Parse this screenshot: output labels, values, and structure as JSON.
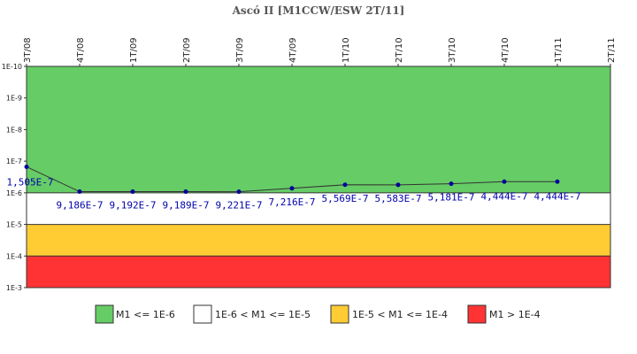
{
  "chart_data": {
    "type": "line",
    "title": "Ascó II [M1CCW/ESW 2T/11]",
    "xlabel": "",
    "ylabel": "",
    "categories": [
      "3T/08",
      "4T/08",
      "1T/09",
      "2T/09",
      "3T/09",
      "4T/09",
      "1T/10",
      "2T/10",
      "3T/10",
      "4T/10",
      "1T/11",
      "2T/11"
    ],
    "y_scale": "log",
    "y_tick_labels": [
      "1E-10",
      "1E-9",
      "1E-8",
      "1E-7",
      "1E-6",
      "1E-5",
      "1E-4",
      "1E-3"
    ],
    "ylim": [
      0.001,
      1e-10
    ],
    "y_axis_inverted": true,
    "series": [
      {
        "values": [
          1.505e-07,
          9.186e-07,
          9.192e-07,
          9.189e-07,
          9.221e-07,
          7.216e-07,
          5.569e-07,
          5.583e-07,
          5.181e-07,
          4.444e-07,
          4.444e-07,
          null
        ],
        "labels": [
          "1,505E-7",
          "9,186E-7",
          "9,192E-7",
          "9,189E-7",
          "9,221E-7",
          "7,216E-7",
          "5,569E-7",
          "5,583E-7",
          "5,181E-7",
          "4,444E-7",
          "4,444E-7",
          ""
        ],
        "line_color": "#333333",
        "marker_color": "#000099"
      }
    ],
    "bands": [
      {
        "from": 1e-10,
        "to": 1e-06,
        "color": "#66cc66"
      },
      {
        "from": 1e-06,
        "to": 1e-05,
        "color": "#ffffff"
      },
      {
        "from": 1e-05,
        "to": 0.0001,
        "color": "#ffcc33"
      },
      {
        "from": 0.0001,
        "to": 0.001,
        "color": "#ff3333"
      }
    ],
    "legend": {
      "position": "bottom",
      "items": [
        {
          "label": "M1 <= 1E-6",
          "color": "#66cc66"
        },
        {
          "label": "1E-6 < M1 <= 1E-5",
          "color": "#ffffff"
        },
        {
          "label": "1E-5 < M1 <= 1E-4",
          "color": "#ffcc33"
        },
        {
          "label": "M1 > 1E-4",
          "color": "#ff3333"
        }
      ]
    },
    "grid": false
  }
}
